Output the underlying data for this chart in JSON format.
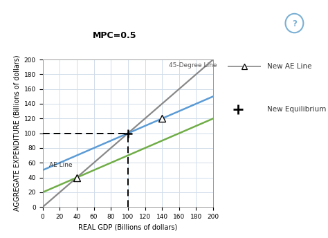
{
  "title": "MPC=0.5",
  "xlabel": "REAL GDP (Billions of dollars)",
  "ylabel": "AGGREGATE EXPENDITURE (Billions of dollars)",
  "xlim": [
    0,
    200
  ],
  "ylim": [
    0,
    200
  ],
  "xticks": [
    0,
    20,
    40,
    60,
    80,
    100,
    120,
    140,
    160,
    180,
    200
  ],
  "yticks": [
    0,
    20,
    40,
    60,
    80,
    100,
    120,
    140,
    160,
    180,
    200
  ],
  "line_45_color": "#888888",
  "line_45_label": "45-Degree Line",
  "ae_line_color": "#70ad47",
  "ae_line_intercept": 20,
  "ae_line_slope": 0.5,
  "ae_line_label": "AE Line",
  "new_ae_line_color": "#5b9bd5",
  "new_ae_line_intercept": 50,
  "new_ae_line_slope": 0.5,
  "new_ae_line_label": "New AE Line",
  "equilibrium_x": 100,
  "equilibrium_y": 100,
  "ae_triangle_x": 40,
  "new_ae_triangle_x": 140,
  "bg_color": "#ffffff",
  "grid_color": "#d0dcea",
  "dashed_color": "#000000",
  "legend_gray_color": "#999999",
  "title_fontsize": 9,
  "axis_fontsize": 7,
  "tick_fontsize": 6.5
}
